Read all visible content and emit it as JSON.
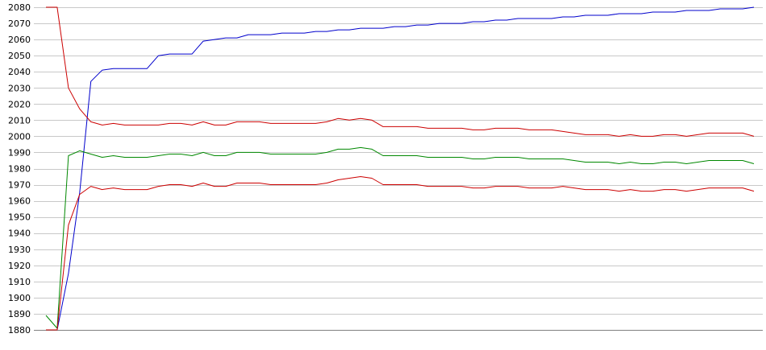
{
  "chart_data": {
    "type": "line",
    "title": "",
    "xlabel": "",
    "ylabel": "",
    "ylim": [
      1880,
      2080
    ],
    "yticks": [
      1880,
      1890,
      1900,
      1910,
      1920,
      1930,
      1940,
      1950,
      1960,
      1970,
      1980,
      1990,
      2000,
      2010,
      2020,
      2030,
      2040,
      2050,
      2060,
      2070,
      2080
    ],
    "grid": true,
    "legend": "none",
    "x": [
      0,
      1,
      2,
      3,
      4,
      5,
      6,
      7,
      8,
      9,
      10,
      11,
      12,
      13,
      14,
      15,
      16,
      17,
      18,
      19,
      20,
      21,
      22,
      23,
      24,
      25,
      26,
      27,
      28,
      29,
      30,
      31,
      32,
      33,
      34,
      35,
      36,
      37,
      38,
      39,
      40,
      41,
      42,
      43,
      44,
      45,
      46,
      47,
      48,
      49,
      50,
      51,
      52,
      53,
      54,
      55,
      56,
      57,
      58,
      59,
      60,
      61,
      62,
      63
    ],
    "series": [
      {
        "color": "#0000cc",
        "values": [
          1880,
          1880,
          1915,
          1965,
          2034,
          2041,
          2042,
          2042,
          2042,
          2042,
          2050,
          2051,
          2051,
          2051,
          2059,
          2060,
          2061,
          2061,
          2063,
          2063,
          2063,
          2064,
          2064,
          2064,
          2065,
          2065,
          2066,
          2066,
          2067,
          2067,
          2067,
          2068,
          2068,
          2069,
          2069,
          2070,
          2070,
          2070,
          2071,
          2071,
          2072,
          2072,
          2073,
          2073,
          2073,
          2073,
          2074,
          2074,
          2075,
          2075,
          2075,
          2076,
          2076,
          2076,
          2077,
          2077,
          2077,
          2078,
          2078,
          2078,
          2079,
          2079,
          2079,
          2080
        ]
      },
      {
        "color": "#cc0000",
        "values": [
          2080,
          2080,
          2030,
          2017,
          2009,
          2007,
          2008,
          2007,
          2007,
          2007,
          2007,
          2008,
          2008,
          2007,
          2009,
          2007,
          2007,
          2009,
          2009,
          2009,
          2008,
          2008,
          2008,
          2008,
          2008,
          2009,
          2011,
          2010,
          2011,
          2010,
          2006,
          2006,
          2006,
          2006,
          2005,
          2005,
          2005,
          2005,
          2004,
          2004,
          2005,
          2005,
          2005,
          2004,
          2004,
          2004,
          2003,
          2002,
          2001,
          2001,
          2001,
          2000,
          2001,
          2000,
          2000,
          2001,
          2001,
          2000,
          2001,
          2002,
          2002,
          2002,
          2002,
          2000
        ]
      },
      {
        "color": "#008800",
        "values": [
          1889,
          1881,
          1988,
          1991,
          1989,
          1987,
          1988,
          1987,
          1987,
          1987,
          1988,
          1989,
          1989,
          1988,
          1990,
          1988,
          1988,
          1990,
          1990,
          1990,
          1989,
          1989,
          1989,
          1989,
          1989,
          1990,
          1992,
          1992,
          1993,
          1992,
          1988,
          1988,
          1988,
          1988,
          1987,
          1987,
          1987,
          1987,
          1986,
          1986,
          1987,
          1987,
          1987,
          1986,
          1986,
          1986,
          1986,
          1985,
          1984,
          1984,
          1984,
          1983,
          1984,
          1983,
          1983,
          1984,
          1984,
          1983,
          1984,
          1985,
          1985,
          1985,
          1985,
          1983
        ]
      },
      {
        "color": "#cc0000",
        "values": [
          1880,
          1880,
          1945,
          1964,
          1969,
          1967,
          1968,
          1967,
          1967,
          1967,
          1969,
          1970,
          1970,
          1969,
          1971,
          1969,
          1969,
          1971,
          1971,
          1971,
          1970,
          1970,
          1970,
          1970,
          1970,
          1971,
          1973,
          1974,
          1975,
          1974,
          1970,
          1970,
          1970,
          1970,
          1969,
          1969,
          1969,
          1969,
          1968,
          1968,
          1969,
          1969,
          1969,
          1968,
          1968,
          1968,
          1969,
          1968,
          1967,
          1967,
          1967,
          1966,
          1967,
          1966,
          1966,
          1967,
          1967,
          1966,
          1967,
          1968,
          1968,
          1968,
          1968,
          1966
        ]
      }
    ]
  }
}
